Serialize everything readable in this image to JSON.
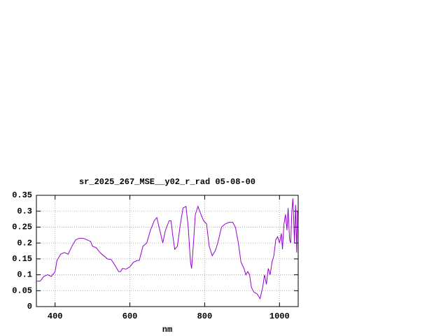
{
  "chart_data": {
    "type": "line",
    "title": "sr_2025_267_MSE__y02_r_rad 05-08-00",
    "x_label": "nm",
    "x": [
      350,
      360,
      370,
      380,
      390,
      400,
      405,
      415,
      425,
      435,
      445,
      455,
      465,
      475,
      485,
      495,
      500,
      510,
      520,
      530,
      540,
      550,
      560,
      570,
      575,
      580,
      590,
      600,
      610,
      620,
      625,
      635,
      645,
      655,
      665,
      672,
      680,
      688,
      695,
      705,
      710,
      715,
      720,
      727,
      735,
      742,
      750,
      756,
      762,
      765,
      770,
      775,
      782,
      790,
      797,
      805,
      812,
      820,
      828,
      835,
      845,
      855,
      865,
      875,
      882,
      890,
      897,
      905,
      910,
      915,
      920,
      925,
      932,
      940,
      948,
      955,
      960,
      965,
      970,
      975,
      980,
      985,
      990,
      995,
      1000,
      1005,
      1008,
      1012,
      1016,
      1020,
      1023,
      1027,
      1030,
      1033,
      1036,
      1040,
      1043,
      1046,
      1048
    ],
    "series": [
      {
        "name": "sr_2025_267_MSE__y02_r_rad",
        "color": "#9400d3",
        "values": [
          0.08,
          0.08,
          0.095,
          0.1,
          0.095,
          0.11,
          0.145,
          0.165,
          0.17,
          0.165,
          0.19,
          0.21,
          0.215,
          0.215,
          0.21,
          0.205,
          0.19,
          0.185,
          0.17,
          0.16,
          0.15,
          0.148,
          0.13,
          0.11,
          0.11,
          0.12,
          0.118,
          0.125,
          0.14,
          0.145,
          0.145,
          0.19,
          0.2,
          0.24,
          0.27,
          0.28,
          0.24,
          0.2,
          0.24,
          0.27,
          0.27,
          0.22,
          0.18,
          0.19,
          0.26,
          0.31,
          0.315,
          0.25,
          0.14,
          0.12,
          0.2,
          0.29,
          0.315,
          0.29,
          0.27,
          0.26,
          0.19,
          0.16,
          0.175,
          0.2,
          0.25,
          0.26,
          0.265,
          0.265,
          0.25,
          0.2,
          0.14,
          0.12,
          0.1,
          0.11,
          0.1,
          0.06,
          0.045,
          0.04,
          0.025,
          0.06,
          0.1,
          0.07,
          0.12,
          0.1,
          0.14,
          0.16,
          0.21,
          0.22,
          0.2,
          0.23,
          0.18,
          0.26,
          0.29,
          0.24,
          0.31,
          0.21,
          0.2,
          0.3,
          0.34,
          0.2,
          0.32,
          0.17,
          0.3
        ]
      }
    ],
    "xlim": [
      350,
      1050
    ],
    "xticks": [
      400,
      600,
      800,
      1000
    ],
    "ylim": [
      0,
      0.35
    ],
    "yticks": [
      0,
      0.05,
      0.1,
      0.15,
      0.2,
      0.25,
      0.3,
      0.35
    ],
    "grid": true
  }
}
